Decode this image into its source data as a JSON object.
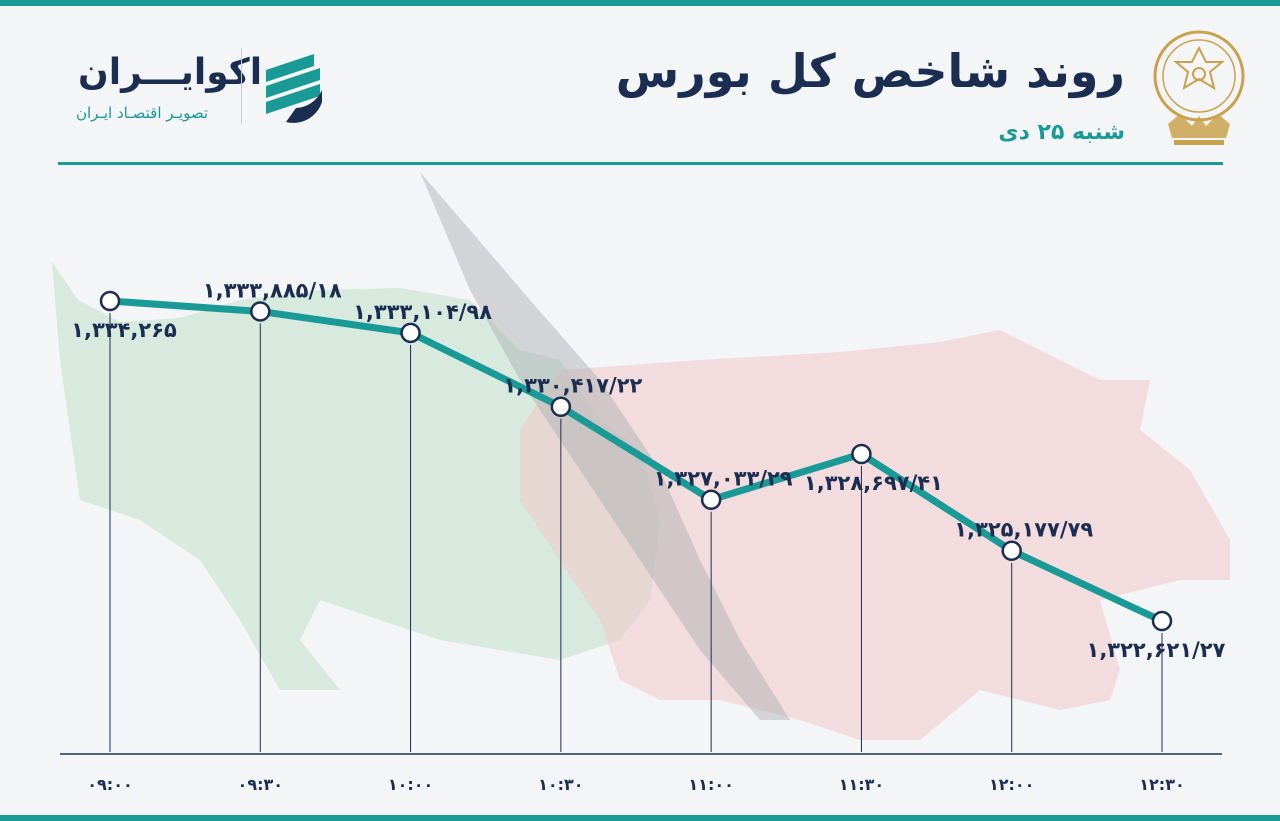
{
  "header": {
    "title": "روند شاخص کل بورس",
    "subtitle": "شنبه ۲۵ دی"
  },
  "brand": {
    "name": "اکوایـــران",
    "tagline": "تصویـر اقتصـاد ایـران"
  },
  "colors": {
    "accent": "#1a9a97",
    "text": "#1b2e52",
    "bull": "#bfe0c8",
    "bear": "#f2c6c8",
    "emblem": "#c9a24e"
  },
  "chart_data": {
    "type": "line",
    "x": [
      "۰۹:۰۰",
      "۰۹:۳۰",
      "۱۰:۰۰",
      "۱۰:۳۰",
      "۱۱:۰۰",
      "۱۱:۳۰",
      "۱۲:۰۰",
      "۱۲:۳۰"
    ],
    "values": [
      1334265,
      1333885.18,
      1333104.98,
      1330417.22,
      1327033.29,
      1328697.41,
      1325177.79,
      1322621.27
    ],
    "data_labels": [
      "۱,۳۳۴,۲۶۵",
      "۱,۳۳۳,۸۸۵/۱۸",
      "۱,۳۳۳,۱۰۴/۹۸",
      "۱,۳۳۰,۴۱۷/۲۲",
      "۱,۳۲۷,۰۳۳/۲۹",
      "۱,۳۲۸,۶۹۷/۴۱",
      "۱,۳۲۵,۱۷۷/۷۹",
      "۱,۳۲۲,۶۲۱/۲۷"
    ],
    "grid": false,
    "legend": "none"
  }
}
